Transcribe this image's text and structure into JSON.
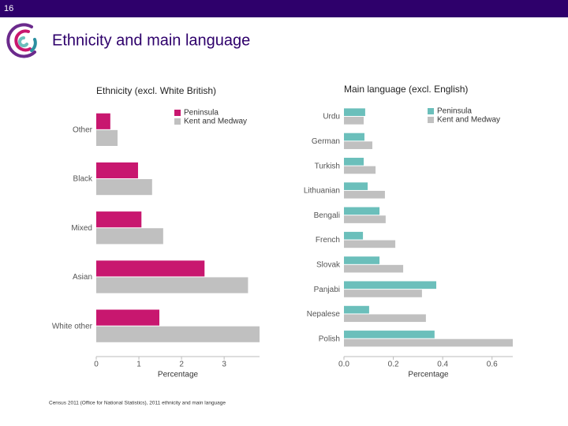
{
  "slide_number": "16",
  "title": "Ethnicity and main language",
  "source": "Census 2011 (Office for National Statistics), 2011 ethnicity and main language",
  "chart_data": [
    {
      "type": "hbar",
      "title": "Ethnicity (excl. White British)",
      "xlabel": "Percentage",
      "categories": [
        "Other",
        "Black",
        "Mixed",
        "Asian",
        "White other"
      ],
      "series": [
        {
          "name": "Peninsula",
          "color": "#c8176f",
          "values": [
            0.33,
            0.98,
            1.06,
            2.54,
            1.48
          ]
        },
        {
          "name": "Kent and Medway",
          "color": "#c0c0c0",
          "values": [
            0.5,
            1.31,
            1.57,
            3.56,
            3.83
          ]
        }
      ],
      "xlim": [
        0,
        3.83
      ],
      "xticks": [
        0,
        1,
        2,
        3
      ],
      "legend": "top-right"
    },
    {
      "type": "hbar",
      "title": "Main language (excl. English)",
      "xlabel": "Percentage",
      "categories": [
        "Urdu",
        "German",
        "Turkish",
        "Lithuanian",
        "Bengali",
        "French",
        "Slovak",
        "Panjabi",
        "Nepalese",
        "Polish"
      ],
      "series": [
        {
          "name": "Peninsula",
          "color": "#6bbfbb",
          "values": [
            0.086,
            0.083,
            0.08,
            0.096,
            0.144,
            0.077,
            0.144,
            0.374,
            0.102,
            0.367
          ]
        },
        {
          "name": "Kent and Medway",
          "color": "#c0c0c0",
          "values": [
            0.08,
            0.115,
            0.128,
            0.166,
            0.169,
            0.208,
            0.24,
            0.316,
            0.332,
            0.684
          ]
        }
      ],
      "xlim": [
        0,
        0.684
      ],
      "xticks": [
        {
          "value": 0,
          "label": "0.0"
        },
        0.2,
        0.4,
        0.6
      ],
      "legend": "top-right"
    }
  ]
}
